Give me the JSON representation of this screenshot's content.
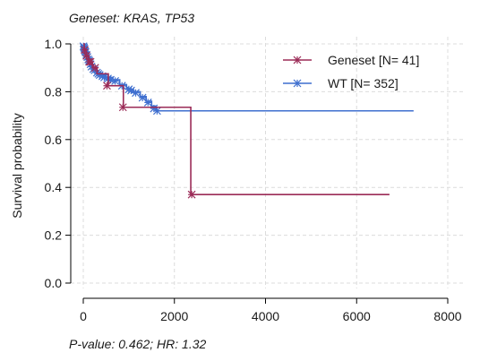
{
  "chart_data": {
    "type": "line",
    "title": "Geneset: KRAS, TP53",
    "footer": "P-value: 0.462; HR: 1.32",
    "xlabel": "",
    "ylabel": "Survival probability",
    "xlim": [
      -200,
      8000
    ],
    "ylim": [
      0,
      1
    ],
    "x_ticks": [
      0,
      2000,
      4000,
      6000,
      8000
    ],
    "x_tick_labels": [
      "0",
      "2000",
      "4000",
      "6000",
      "8000"
    ],
    "y_ticks": [
      0,
      0.2,
      0.4,
      0.6,
      0.8,
      1
    ],
    "y_tick_labels": [
      "0.0",
      "0.2",
      "0.4",
      "0.6",
      "0.8",
      "1.0"
    ],
    "grid": true,
    "legend_position": "top-right",
    "series": [
      {
        "name": "Geneset [N= 41]",
        "color": "#9B2B57",
        "step": [
          [
            0,
            1.0
          ],
          [
            20,
            0.975
          ],
          [
            60,
            0.95
          ],
          [
            120,
            0.925
          ],
          [
            200,
            0.9
          ],
          [
            300,
            0.875
          ],
          [
            550,
            0.825
          ],
          [
            880,
            0.735
          ],
          [
            2360,
            0.37
          ],
          [
            6720,
            0.37
          ]
        ],
        "censored": [
          [
            30,
            0.975
          ],
          [
            70,
            0.95
          ],
          [
            130,
            0.925
          ],
          [
            160,
            0.925
          ],
          [
            260,
            0.9
          ],
          [
            520,
            0.825
          ],
          [
            870,
            0.735
          ],
          [
            2380,
            0.37
          ]
        ]
      },
      {
        "name": "WT [N= 352]",
        "color": "#3F6FCF",
        "step": [
          [
            0,
            1.0
          ],
          [
            30,
            0.98
          ],
          [
            60,
            0.96
          ],
          [
            100,
            0.94
          ],
          [
            150,
            0.92
          ],
          [
            200,
            0.9
          ],
          [
            280,
            0.88
          ],
          [
            380,
            0.87
          ],
          [
            500,
            0.86
          ],
          [
            650,
            0.85
          ],
          [
            800,
            0.83
          ],
          [
            950,
            0.81
          ],
          [
            1100,
            0.8
          ],
          [
            1250,
            0.78
          ],
          [
            1380,
            0.76
          ],
          [
            1500,
            0.74
          ],
          [
            1600,
            0.72
          ],
          [
            7250,
            0.72
          ]
        ],
        "censored": [
          [
            5,
            0.99
          ],
          [
            15,
            0.985
          ],
          [
            25,
            0.98
          ],
          [
            40,
            0.97
          ],
          [
            50,
            0.965
          ],
          [
            70,
            0.955
          ],
          [
            90,
            0.945
          ],
          [
            110,
            0.935
          ],
          [
            130,
            0.93
          ],
          [
            160,
            0.915
          ],
          [
            180,
            0.905
          ],
          [
            220,
            0.895
          ],
          [
            250,
            0.89
          ],
          [
            300,
            0.88
          ],
          [
            330,
            0.875
          ],
          [
            360,
            0.87
          ],
          [
            420,
            0.865
          ],
          [
            460,
            0.86
          ],
          [
            540,
            0.855
          ],
          [
            600,
            0.85
          ],
          [
            700,
            0.845
          ],
          [
            850,
            0.825
          ],
          [
            1000,
            0.81
          ],
          [
            1050,
            0.805
          ],
          [
            1150,
            0.795
          ],
          [
            1300,
            0.775
          ],
          [
            1420,
            0.755
          ],
          [
            1550,
            0.73
          ],
          [
            1620,
            0.72
          ]
        ]
      }
    ]
  }
}
